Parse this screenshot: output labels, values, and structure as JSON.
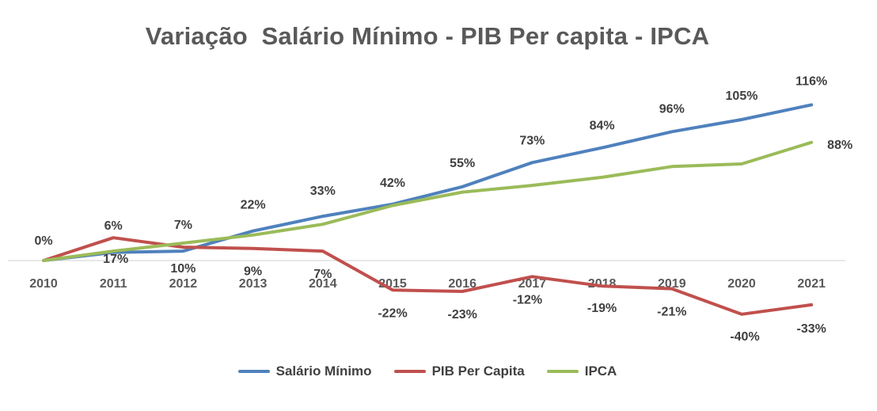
{
  "chart_data": {
    "type": "line",
    "title": "Variação  Salário Mínimo - PIB Per capita - IPCA",
    "categories": [
      "2010",
      "2011",
      "2012",
      "2013",
      "2014",
      "2015",
      "2016",
      "2017",
      "2018",
      "2019",
      "2020",
      "2021"
    ],
    "ylim": [
      -45,
      125
    ],
    "grid": false,
    "legend_position": "bottom",
    "series": [
      {
        "name": "Salário Mínimo",
        "color": "#4F81BD",
        "values": [
          0,
          6,
          7,
          22,
          33,
          42,
          55,
          73,
          84,
          96,
          105,
          116
        ],
        "labels": [
          "0%",
          "6%",
          "7%",
          "22%",
          "33%",
          "42%",
          "55%",
          "73%",
          "84%",
          "96%",
          "105%",
          "116%"
        ]
      },
      {
        "name": "PIB Per Capita",
        "color": "#C0504D",
        "values": [
          0,
          17,
          10,
          9,
          7,
          -22,
          -23,
          -12,
          -19,
          -21,
          -40,
          -33
        ],
        "labels": [
          "",
          "17%",
          "10%",
          "9%",
          "7%",
          "-22%",
          "-23%",
          "-12%",
          "-19%",
          "-21%",
          "-40%",
          "-33%"
        ]
      },
      {
        "name": "IPCA",
        "color": "#9BBB59",
        "values": [
          0,
          7,
          13,
          19,
          27,
          41,
          51,
          56,
          62,
          70,
          72,
          88
        ],
        "labels": [
          "",
          "",
          "",
          "",
          "",
          "",
          "",
          "",
          "",
          "",
          "",
          "88%"
        ]
      }
    ]
  }
}
